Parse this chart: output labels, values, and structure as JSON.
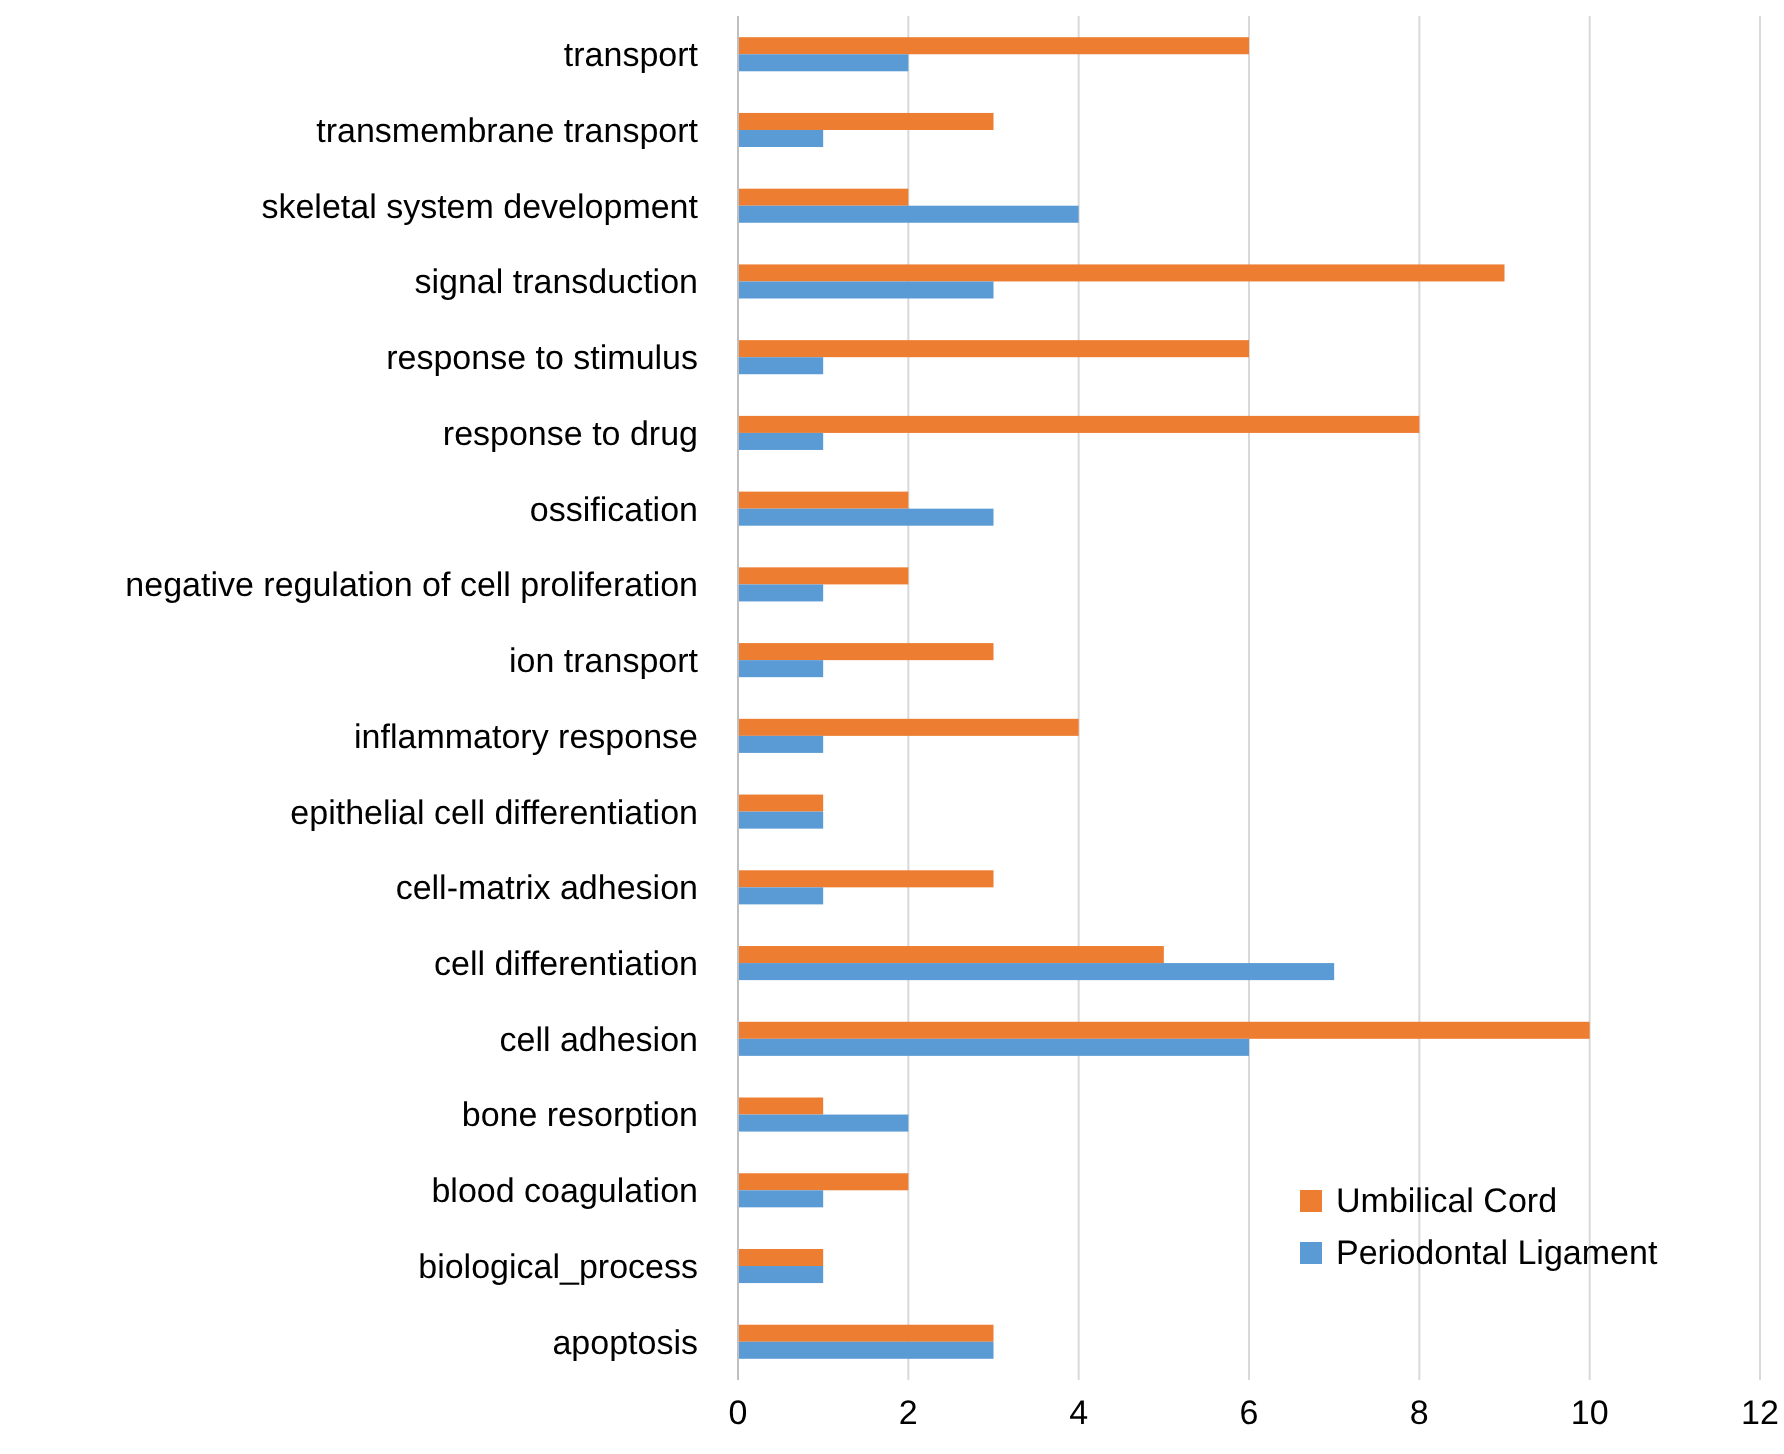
{
  "chart_data": {
    "type": "bar",
    "orientation": "horizontal",
    "categories": [
      "transport",
      "transmembrane transport",
      "skeletal system development",
      "signal transduction",
      "response to stimulus",
      "response to drug",
      "ossification",
      "negative regulation of cell proliferation",
      "ion transport",
      "inflammatory response",
      "epithelial cell differentiation",
      "cell-matrix adhesion",
      "cell differentiation",
      "cell adhesion",
      "bone resorption",
      "blood coagulation",
      "biological_process",
      "apoptosis"
    ],
    "series": [
      {
        "name": "Umbilical Cord",
        "color": "#ed7d31",
        "values": [
          6,
          3,
          2,
          9,
          6,
          8,
          2,
          2,
          3,
          4,
          1,
          3,
          5,
          10,
          1,
          2,
          1,
          3
        ]
      },
      {
        "name": "Periodontal Ligament",
        "color": "#5b9bd5",
        "values": [
          2,
          1,
          4,
          3,
          1,
          1,
          3,
          1,
          1,
          1,
          1,
          1,
          7,
          6,
          2,
          1,
          1,
          3
        ]
      }
    ],
    "xlim": [
      0,
      12
    ],
    "xticks": [
      0,
      2,
      4,
      6,
      8,
      10,
      12
    ],
    "grid": "x",
    "legend": "bottom right"
  }
}
